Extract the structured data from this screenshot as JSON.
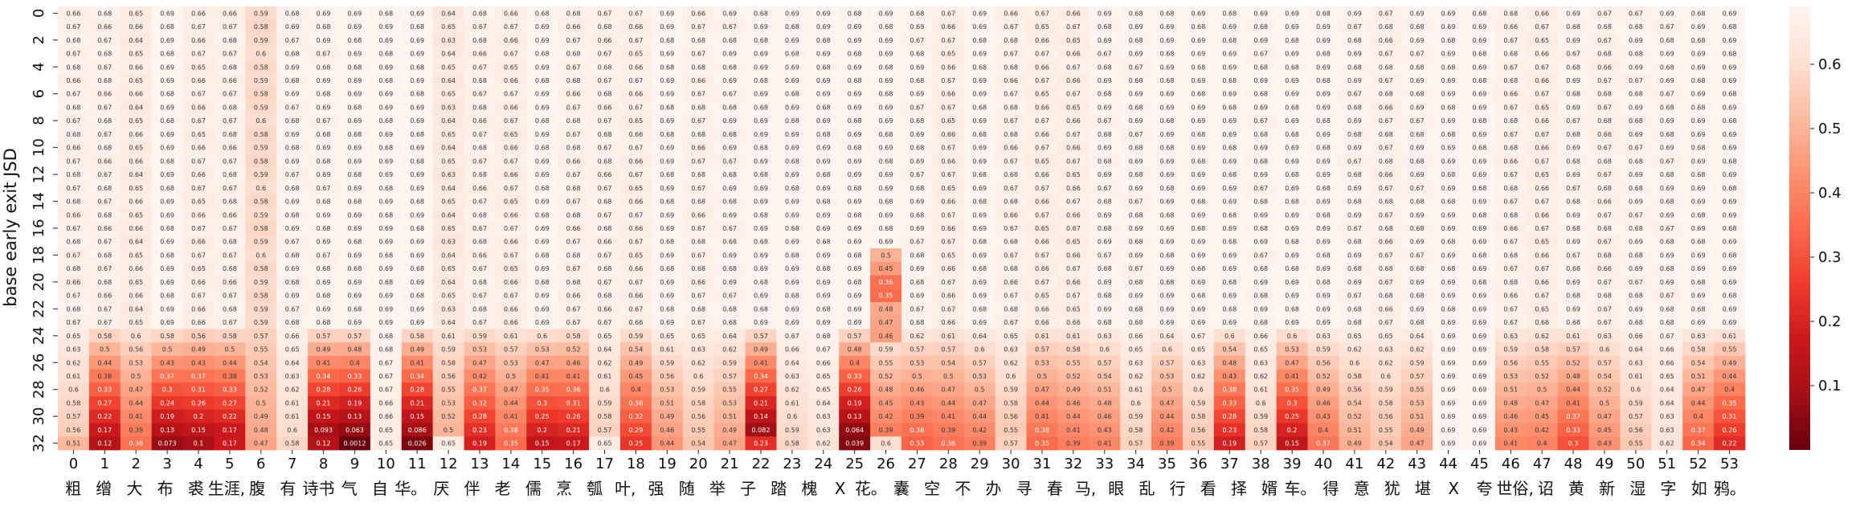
{
  "chart_data": {
    "type": "heatmap",
    "title": "",
    "ylabel": "base early exit JSD",
    "xlabel": "",
    "x_tick_labels": [
      "0",
      "1",
      "2",
      "3",
      "4",
      "5",
      "6",
      "7",
      "8",
      "9",
      "10",
      "11",
      "12",
      "13",
      "14",
      "15",
      "16",
      "17",
      "18",
      "19",
      "20",
      "21",
      "22",
      "23",
      "24",
      "25",
      "26",
      "27",
      "28",
      "29",
      "30",
      "31",
      "32",
      "33",
      "34",
      "35",
      "36",
      "37",
      "38",
      "39",
      "40",
      "41",
      "42",
      "43",
      "44",
      "45",
      "46",
      "47",
      "48",
      "49",
      "50",
      "51",
      "52",
      "53"
    ],
    "x_tokens": [
      "粗",
      "缯",
      "大",
      "布",
      "裘",
      "生涯,",
      "腹",
      "有",
      "诗书",
      "气",
      "自",
      "华。",
      "厌",
      "伴",
      "老",
      "儒",
      "烹",
      "瓠",
      "叶,",
      "强",
      "随",
      "举",
      "子",
      "踏",
      "槐",
      "X",
      "花。",
      "囊",
      "空",
      "不",
      "办",
      "寻",
      "春",
      "马,",
      "眼",
      "乱",
      "行",
      "看",
      "择",
      "婿",
      "车。",
      "得",
      "意",
      "犹",
      "堪",
      "X",
      "夸",
      "世俗,",
      "诏",
      "黄",
      "新",
      "湿",
      "字",
      "如",
      "鸦。"
    ],
    "y_tick_labels": [
      "0",
      "2",
      "4",
      "6",
      "8",
      "10",
      "12",
      "14",
      "16",
      "18",
      "20",
      "22",
      "24",
      "26",
      "28",
      "30",
      "32"
    ],
    "n_rows": 33,
    "n_cols": 54,
    "value_range": [
      0.0,
      0.69
    ],
    "colorbar_ticks": [
      "0.1",
      "0.2",
      "0.3",
      "0.4",
      "0.5",
      "0.6"
    ],
    "colorbar_tick_values": [
      0.1,
      0.2,
      0.3,
      0.4,
      0.5,
      0.6
    ],
    "colormap": [
      "#67000d",
      "#a50f15",
      "#cb181d",
      "#ef3b2c",
      "#fb6a4a",
      "#fc9272",
      "#fcbba1",
      "#fee0d2",
      "#fff5f0"
    ],
    "annotation_format": "2 significant digits",
    "base_row": [
      0.67,
      0.67,
      0.65,
      0.69,
      0.66,
      0.67,
      0.59,
      0.68,
      0.68,
      0.69,
      0.69,
      0.69,
      0.64,
      0.67,
      0.66,
      0.69,
      0.67,
      0.67,
      0.66,
      0.69,
      0.67,
      0.68,
      0.69,
      0.69,
      0.69,
      0.69,
      0.69,
      0.68,
      0.66,
      0.69,
      0.67,
      0.66,
      0.66,
      0.68,
      0.68,
      0.69,
      0.69,
      0.69,
      0.68,
      0.69,
      0.69,
      0.68,
      0.67,
      0.68,
      0.69,
      0.69,
      0.67,
      0.66,
      0.68,
      0.67,
      0.68,
      0.68,
      0.69,
      0.69
    ],
    "final_row": [
      0.51,
      0.12,
      0.36,
      0.073,
      0.1,
      0.17,
      0.47,
      0.58,
      0.12,
      0.0012,
      0.65,
      0.026,
      0.65,
      0.19,
      0.35,
      0.15,
      0.17,
      0.65,
      0.25,
      0.44,
      0.54,
      0.47,
      0.23,
      0.58,
      0.62,
      0.039,
      0.6,
      0.33,
      0.36,
      0.39,
      0.57,
      0.35,
      0.39,
      0.41,
      0.57,
      0.39,
      0.55,
      0.19,
      0.57,
      0.15,
      0.37,
      0.49,
      0.54,
      0.47,
      0.69,
      0.69,
      0.41,
      0.4,
      0.3,
      0.43,
      0.55,
      0.62,
      0.34,
      0.22
    ],
    "dip_col26": {
      "18": 0.5,
      "19": 0.45,
      "20": 0.36,
      "21": 0.35,
      "22": 0.48,
      "23": 0.47,
      "24": 0.46
    },
    "late_mins": [
      0.55,
      0.12,
      0.36,
      0.073,
      0.1,
      0.12,
      0.47,
      0.59,
      0.035,
      0.0012,
      0.65,
      0.026,
      0.49,
      0.19,
      0.35,
      0.15,
      0.17,
      0.56,
      0.25,
      0.44,
      0.54,
      0.47,
      0.022,
      0.58,
      0.62,
      0.0018,
      0.36,
      0.33,
      0.36,
      0.39,
      0.54,
      0.35,
      0.39,
      0.41,
      0.57,
      0.39,
      0.55,
      0.19,
      0.57,
      0.15,
      0.37,
      0.49,
      0.54,
      0.47,
      0.69,
      0.69,
      0.41,
      0.4,
      0.3,
      0.43,
      0.55,
      0.62,
      0.34,
      0.22
    ],
    "decay_start_row": 23
  }
}
